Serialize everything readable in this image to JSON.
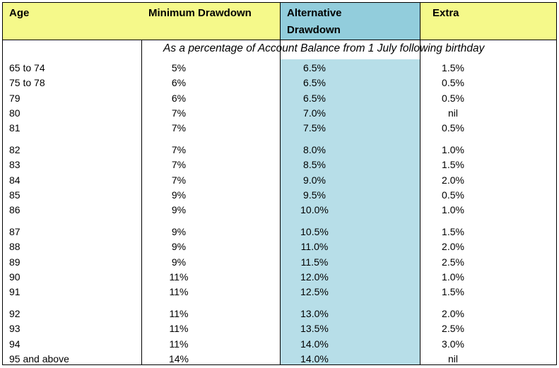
{
  "table": {
    "headers": {
      "age": "Age",
      "minimum": "Minimum Drawdown",
      "alternative_line1": "Alternative",
      "alternative_line2": "Drawdown",
      "extra": "Extra"
    },
    "note": "As a percentage of Account Balance from 1 July following birthday",
    "groups": [
      [
        {
          "age": "65 to 74",
          "minimum": "5%",
          "alternative": "6.5%",
          "extra": "1.5%"
        },
        {
          "age": "75 to 78",
          "minimum": "6%",
          "alternative": "6.5%",
          "extra": "0.5%"
        },
        {
          "age": "79",
          "minimum": "6%",
          "alternative": "6.5%",
          "extra": "0.5%"
        },
        {
          "age": "80",
          "minimum": "7%",
          "alternative": "7.0%",
          "extra": "nil"
        },
        {
          "age": "81",
          "minimum": "7%",
          "alternative": "7.5%",
          "extra": "0.5%"
        }
      ],
      [
        {
          "age": "82",
          "minimum": "7%",
          "alternative": "8.0%",
          "extra": "1.0%"
        },
        {
          "age": "83",
          "minimum": "7%",
          "alternative": "8.5%",
          "extra": "1.5%"
        },
        {
          "age": "84",
          "minimum": "7%",
          "alternative": "9.0%",
          "extra": "2.0%"
        },
        {
          "age": "85",
          "minimum": "9%",
          "alternative": "9.5%",
          "extra": "0.5%"
        },
        {
          "age": "86",
          "minimum": "9%",
          "alternative": "10.0%",
          "extra": "1.0%"
        }
      ],
      [
        {
          "age": "87",
          "minimum": "9%",
          "alternative": "10.5%",
          "extra": "1.5%"
        },
        {
          "age": "88",
          "minimum": "9%",
          "alternative": "11.0%",
          "extra": "2.0%"
        },
        {
          "age": "89",
          "minimum": "9%",
          "alternative": "11.5%",
          "extra": "2.5%"
        },
        {
          "age": "90",
          "minimum": "11%",
          "alternative": "12.0%",
          "extra": "1.0%"
        },
        {
          "age": "91",
          "minimum": "11%",
          "alternative": "12.5%",
          "extra": "1.5%"
        }
      ],
      [
        {
          "age": "92",
          "minimum": "11%",
          "alternative": "13.0%",
          "extra": "2.0%"
        },
        {
          "age": "93",
          "minimum": "11%",
          "alternative": "13.5%",
          "extra": "2.5%"
        },
        {
          "age": "94",
          "minimum": "11%",
          "alternative": "14.0%",
          "extra": "3.0%"
        },
        {
          "age": "95 and above",
          "minimum": "14%",
          "alternative": "14.0%",
          "extra": "nil"
        }
      ]
    ],
    "colors": {
      "header_background": "#f5f98a",
      "alternative_header_background": "#92cddc",
      "alternative_column_background": "#b7dee8"
    }
  }
}
